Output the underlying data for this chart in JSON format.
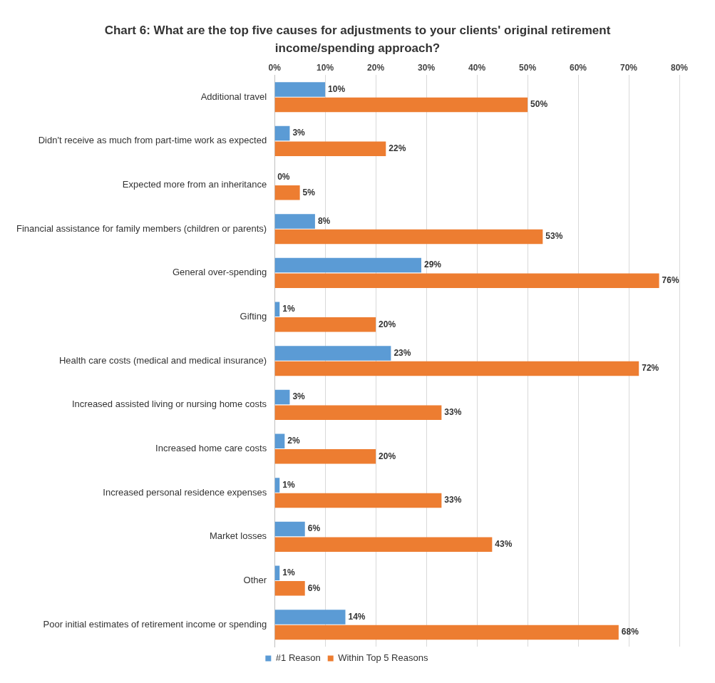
{
  "chart_data": {
    "type": "bar",
    "orientation": "horizontal",
    "title": "Chart 6:  What are the top five causes for adjustments to your clients' original retirement income/spending approach?",
    "categories": [
      "Additional travel",
      "Didn't receive as much from part-time work as expected",
      "Expected more from an inheritance",
      "Financial assistance for family members (children or parents)",
      "General over-spending",
      "Gifting",
      "Health care costs (medical and medical insurance)",
      "Increased assisted living or nursing home costs",
      "Increased home care costs",
      "Increased personal residence expenses",
      "Market losses",
      "Other",
      "Poor initial estimates of retirement income or spending"
    ],
    "series": [
      {
        "name": "#1 Reason",
        "color": "#5b9bd5",
        "values": [
          10,
          3,
          0,
          8,
          29,
          1,
          23,
          3,
          2,
          1,
          6,
          1,
          14
        ],
        "value_labels": [
          "10%",
          "3%",
          "0%",
          "8%",
          "29%",
          "1%",
          "23%",
          "3%",
          "2%",
          "1%",
          "6%",
          "1%",
          "14%"
        ]
      },
      {
        "name": "Within Top 5 Reasons",
        "color": "#ed7d31",
        "values": [
          50,
          22,
          5,
          53,
          76,
          20,
          72,
          33,
          20,
          33,
          43,
          6,
          68
        ],
        "value_labels": [
          "50%",
          "22%",
          "5%",
          "53%",
          "76%",
          "20%",
          "72%",
          "33%",
          "20%",
          "33%",
          "43%",
          "6%",
          "68%"
        ]
      }
    ],
    "xlim": [
      0,
      80
    ],
    "xticks": [
      {
        "value": 0,
        "label": "0%"
      },
      {
        "value": 10,
        "label": "10%"
      },
      {
        "value": 20,
        "label": "20%"
      },
      {
        "value": 30,
        "label": "30%"
      },
      {
        "value": 40,
        "label": "40%"
      },
      {
        "value": 50,
        "label": "50%"
      },
      {
        "value": 60,
        "label": "60%"
      },
      {
        "value": 70,
        "label": "70%"
      },
      {
        "value": 80,
        "label": "80%"
      }
    ],
    "grid": "x",
    "legend": "bottom"
  }
}
